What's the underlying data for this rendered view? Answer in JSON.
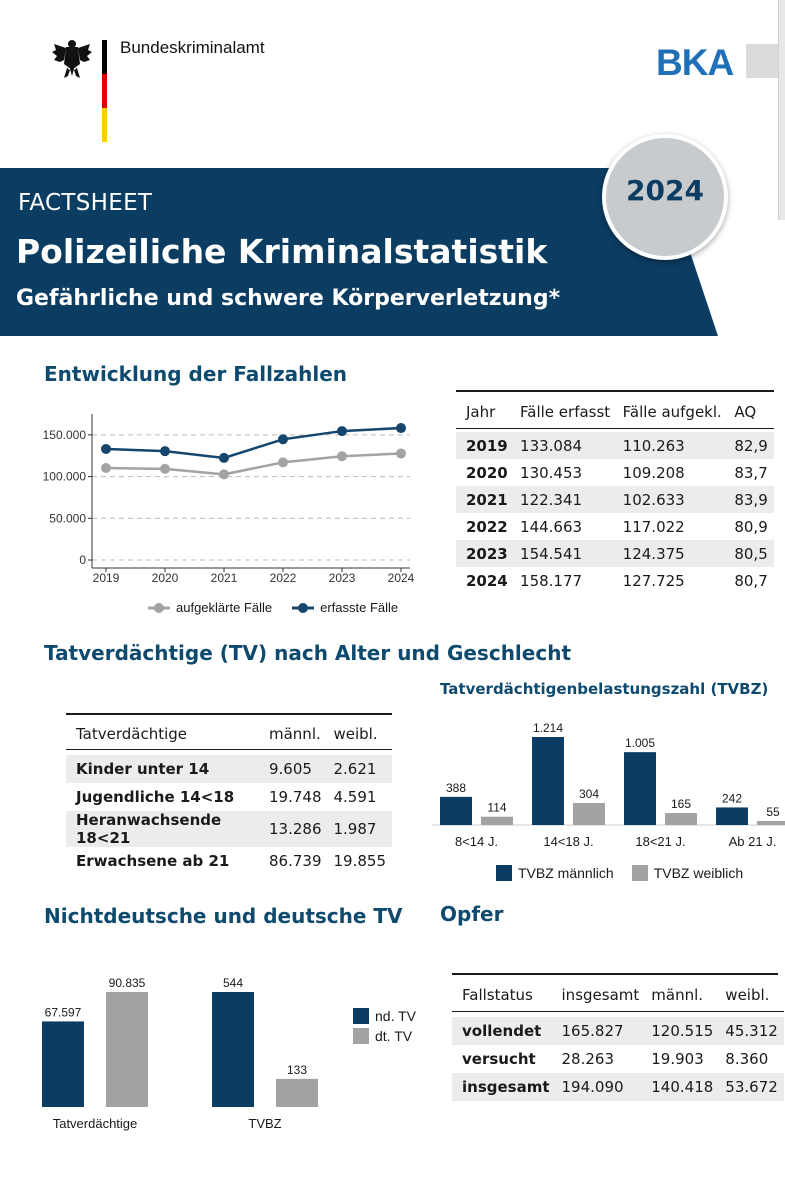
{
  "header": {
    "org_name": "Bundeskriminalamt",
    "logo_text": "BKA",
    "fact_label": "FACTSHEET",
    "title": "Polizeiliche Kriminalstatistik",
    "subtitle": "Gefährliche und schwere Körperverletzung*",
    "year": "2024",
    "icon": "federal-eagle-icon"
  },
  "colors": {
    "navy": "#0b3c61",
    "blue_dark": "#14466e",
    "gray": "#a3a3a3",
    "bka_blue": "#1f70b6",
    "flag_black": "#000000",
    "flag_red": "#dd0000",
    "flag_gold": "#ffce00"
  },
  "section1": {
    "heading": "Entwicklung der Fallzahlen",
    "table": {
      "headers": [
        "Jahr",
        "Fälle erfasst",
        "Fälle aufgekl.",
        "AQ"
      ],
      "rows": [
        [
          "2019",
          "133.084",
          "110.263",
          "82,9"
        ],
        [
          "2020",
          "130.453",
          "109.208",
          "83,7"
        ],
        [
          "2021",
          "122.341",
          "102.633",
          "83,9"
        ],
        [
          "2022",
          "144.663",
          "117.022",
          "80,9"
        ],
        [
          "2023",
          "154.541",
          "124.375",
          "80,5"
        ],
        [
          "2024",
          "158.177",
          "127.725",
          "80,7"
        ]
      ]
    }
  },
  "section2": {
    "heading": "Tatverdächtige (TV) nach Alter und Geschlecht",
    "table": {
      "headers": [
        "Tatverdächtige",
        "männl.",
        "weibl."
      ],
      "rows": [
        [
          "Kinder unter 14",
          "9.605",
          "2.621"
        ],
        [
          "Jugendliche 14<18",
          "19.748",
          "4.591"
        ],
        [
          "Heranwachsende 18<21",
          "13.286",
          "1.987"
        ],
        [
          "Erwachsene ab 21",
          "86.739",
          "19.855"
        ]
      ]
    },
    "tvbz_heading": "Tatverdächtigenbelastungszahl (TVBZ)"
  },
  "section3": {
    "heading": "Nichtdeutsche und deutsche TV"
  },
  "section4": {
    "heading": "Opfer",
    "table": {
      "headers": [
        "Fallstatus",
        "insgesamt",
        "männl.",
        "weibl."
      ],
      "rows": [
        [
          "vollendet",
          "165.827",
          "120.515",
          "45.312"
        ],
        [
          "versucht",
          "28.263",
          "19.903",
          "8.360"
        ],
        [
          "insgesamt",
          "194.090",
          "140.418",
          "53.672"
        ]
      ]
    }
  },
  "chart_data": [
    {
      "type": "line",
      "x": [
        2019,
        2020,
        2021,
        2022,
        2023,
        2024
      ],
      "x_labels": [
        "2019",
        "2020",
        "2021",
        "2022",
        "2023",
        "2024"
      ],
      "y_ticks": [
        0,
        50000,
        100000,
        150000
      ],
      "y_tick_labels": [
        "0",
        "50.000",
        "100.000",
        "150.000"
      ],
      "ylim": [
        0,
        175000
      ],
      "grid": "horizontal dashed",
      "legend_position": "bottom",
      "series": [
        {
          "name": "aufgeklärte Fälle",
          "color": "#a3a3a3",
          "values": [
            110263,
            109208,
            102633,
            117022,
            124375,
            127725
          ]
        },
        {
          "name": "erfasste Fälle",
          "color": "#14466e",
          "values": [
            133084,
            130453,
            122341,
            144663,
            154541,
            158177
          ]
        }
      ]
    },
    {
      "type": "bar",
      "categories": [
        "8<14 J.",
        "14<18 J.",
        "18<21 J.",
        "Ab 21 J."
      ],
      "legend_position": "bottom",
      "series": [
        {
          "name": "TVBZ männlich",
          "color": "#0b3c61",
          "values": [
            388,
            1214,
            1005,
            242
          ],
          "labels": [
            "388",
            "1.214",
            "1.005",
            "242"
          ]
        },
        {
          "name": "TVBZ weiblich",
          "color": "#a3a3a3",
          "values": [
            114,
            304,
            165,
            55
          ],
          "labels": [
            "114",
            "304",
            "165",
            "55"
          ]
        }
      ]
    },
    {
      "type": "bar",
      "categories": [
        "Tatverdächtige"
      ],
      "series": [
        {
          "name": "nd. TV",
          "color": "#0b3c61",
          "values": [
            67597
          ],
          "labels": [
            "67.597"
          ]
        },
        {
          "name": "dt. TV",
          "color": "#a3a3a3",
          "values": [
            90835
          ],
          "labels": [
            "90.835"
          ]
        }
      ]
    },
    {
      "type": "bar",
      "categories": [
        "TVBZ"
      ],
      "legend_position": "right",
      "series": [
        {
          "name": "nd. TV",
          "color": "#0b3c61",
          "values": [
            544
          ],
          "labels": [
            "544"
          ]
        },
        {
          "name": "dt. TV",
          "color": "#a3a3a3",
          "values": [
            133
          ],
          "labels": [
            "133"
          ]
        }
      ]
    }
  ]
}
